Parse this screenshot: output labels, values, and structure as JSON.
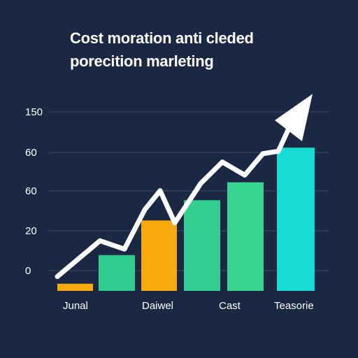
{
  "chart_data": {
    "type": "bar",
    "title": "Cost moration anti cleded\nporecition marleting",
    "ytick_labels": [
      "0",
      "20",
      "60",
      "60",
      "150"
    ],
    "categories": [
      "Junal",
      "",
      "Daiwel",
      "",
      "Cast",
      "Teasorie"
    ],
    "category_labels_shown": [
      "Junal",
      "Daiwel",
      "Cast",
      "Teasorie"
    ],
    "values": [
      6,
      30,
      59,
      76,
      91,
      120
    ],
    "ylim": [
      0,
      150
    ],
    "grid": true,
    "legend": "none",
    "bar_colors": [
      "#f7a90e",
      "#2ecc8e",
      "#f7a90e",
      "#33cf91",
      "#36d48f",
      "#17dcd6"
    ],
    "trend_line": {
      "color": "#ffffff",
      "values": [
        12,
        42,
        35,
        68,
        84,
        57,
        90,
        108,
        97,
        115,
        117,
        145,
        165
      ]
    },
    "colors": {
      "background": "#1b2843",
      "grid": "#3d4a66",
      "text": "#ffffff"
    }
  }
}
